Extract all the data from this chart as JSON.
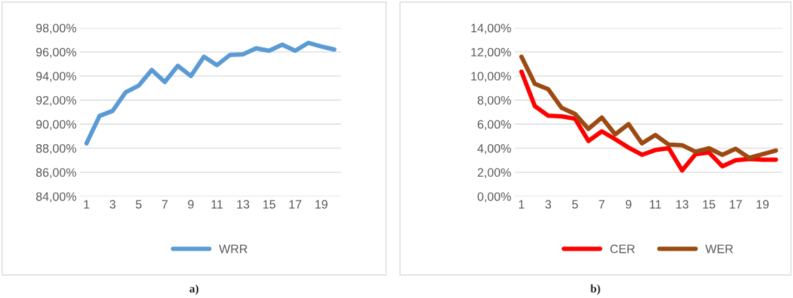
{
  "chart_data": [
    {
      "type": "line",
      "categories": [
        "1",
        null,
        "3",
        null,
        "5",
        null,
        "7",
        null,
        "9",
        null,
        "11",
        null,
        "13",
        null,
        "15",
        null,
        "17",
        null,
        "19",
        null
      ],
      "series": [
        {
          "name": "WRR",
          "color": "#5b9bd5",
          "values": [
            88.4,
            90.68,
            91.1,
            92.65,
            93.2,
            94.5,
            93.5,
            94.85,
            94.0,
            95.6,
            94.9,
            95.75,
            95.8,
            96.3,
            96.1,
            96.6,
            96.1,
            96.75,
            96.45,
            96.2
          ]
        }
      ],
      "ylim": [
        84,
        98
      ],
      "yticks": [
        {
          "value": 84,
          "label": "84,00%"
        },
        {
          "value": 86,
          "label": "86,00%"
        },
        {
          "value": 88,
          "label": "88,00%"
        },
        {
          "value": 90,
          "label": "90,00%"
        },
        {
          "value": 92,
          "label": "92,00%"
        },
        {
          "value": 94,
          "label": "94,00%"
        },
        {
          "value": 96,
          "label": "96,00%"
        },
        {
          "value": 98,
          "label": "98,00%"
        }
      ],
      "grid": "y",
      "legend": "bottom",
      "annotations": [
        "a)"
      ]
    },
    {
      "type": "line",
      "categories": [
        "1",
        null,
        "3",
        null,
        "5",
        null,
        "7",
        null,
        "9",
        null,
        "11",
        null,
        "13",
        null,
        "15",
        null,
        "17",
        null,
        "19",
        null
      ],
      "series": [
        {
          "name": "CER",
          "color": "#ff0000",
          "values": [
            10.36,
            7.5,
            6.7,
            6.65,
            6.45,
            4.6,
            5.4,
            4.75,
            4.05,
            3.45,
            3.85,
            4.0,
            2.15,
            3.5,
            3.65,
            2.5,
            3.0,
            3.1,
            3.05,
            3.05
          ]
        },
        {
          "name": "WER",
          "color": "#9c4a12",
          "values": [
            11.6,
            9.35,
            8.9,
            7.35,
            6.85,
            5.6,
            6.55,
            5.15,
            6.0,
            4.4,
            5.1,
            4.3,
            4.25,
            3.7,
            4.0,
            3.45,
            3.95,
            3.2,
            3.5,
            3.8
          ]
        }
      ],
      "ylim": [
        0,
        14
      ],
      "yticks": [
        {
          "value": 0,
          "label": "0,00%"
        },
        {
          "value": 2,
          "label": "2,00%"
        },
        {
          "value": 4,
          "label": "4,00%"
        },
        {
          "value": 6,
          "label": "6,00%"
        },
        {
          "value": 8,
          "label": "8,00%"
        },
        {
          "value": 10,
          "label": "10,00%"
        },
        {
          "value": 12,
          "label": "12,00%"
        },
        {
          "value": 14,
          "label": "14,00%"
        }
      ],
      "grid": "y",
      "legend": "bottom",
      "annotations": [
        "b)"
      ]
    }
  ]
}
